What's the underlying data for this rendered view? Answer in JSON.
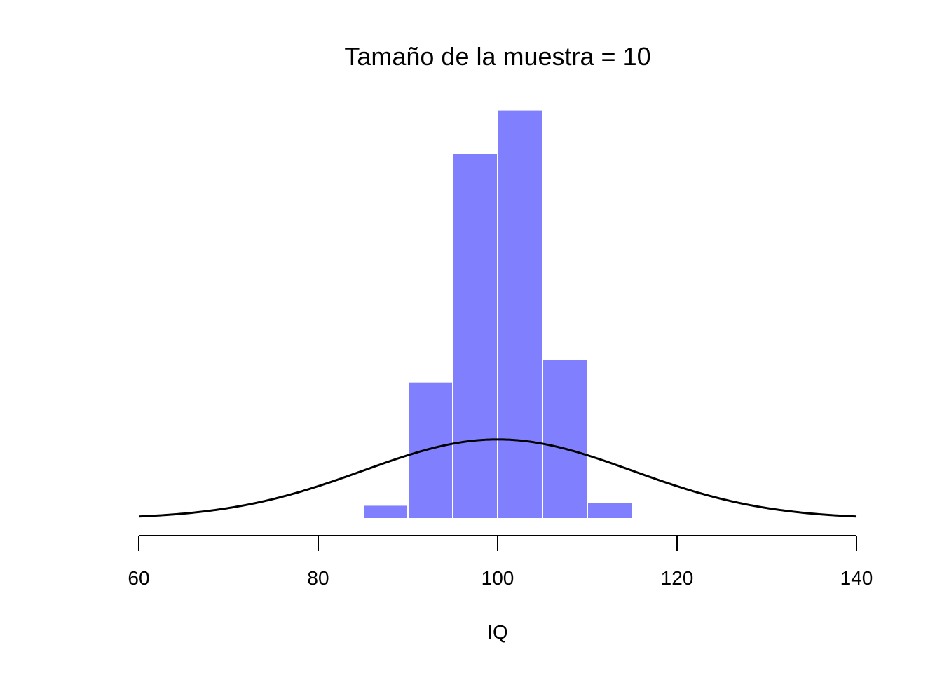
{
  "chart_data": {
    "type": "bar",
    "title": "Tamaño de la muestra = 10",
    "xlabel": "IQ",
    "ylabel": "",
    "xlim": [
      60,
      140
    ],
    "x_ticks": [
      60,
      80,
      100,
      120,
      140
    ],
    "bin_width": 5,
    "bins": [
      {
        "start": 80,
        "end": 85,
        "density": 0.0002
      },
      {
        "start": 85,
        "end": 90,
        "density": 0.0046
      },
      {
        "start": 90,
        "end": 95,
        "density": 0.0459
      },
      {
        "start": 95,
        "end": 100,
        "density": 0.1226
      },
      {
        "start": 100,
        "end": 105,
        "density": 0.1371
      },
      {
        "start": 105,
        "end": 110,
        "density": 0.0535
      },
      {
        "start": 110,
        "end": 115,
        "density": 0.0055
      }
    ],
    "ylim": [
      0,
      0.137
    ],
    "normal_curve": {
      "mean": 100,
      "sd": 15
    },
    "bar_color": "#8080FF",
    "curve_color": "#000000",
    "grid": false,
    "y_axis_shown": false
  }
}
